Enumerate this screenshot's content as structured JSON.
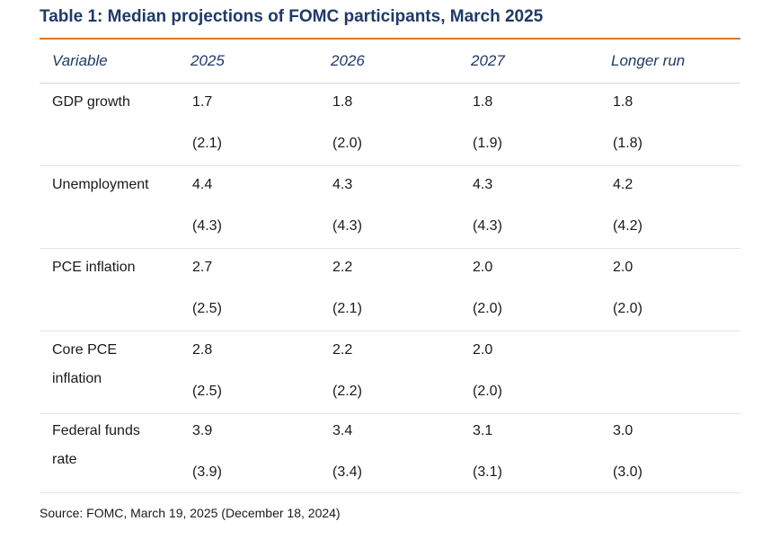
{
  "title": "Table 1: Median projections of FOMC participants, March 2025",
  "columns": [
    "Variable",
    "2025",
    "2026",
    "2027",
    "Longer run"
  ],
  "rows": [
    {
      "label": "GDP growth",
      "current": [
        "1.7",
        "1.8",
        "1.8",
        "1.8"
      ],
      "previous": [
        "(2.1)",
        "(2.0)",
        "(1.9)",
        "(1.8)"
      ]
    },
    {
      "label": "Unemployment",
      "current": [
        "4.4",
        "4.3",
        "4.3",
        "4.2"
      ],
      "previous": [
        "(4.3)",
        "(4.3)",
        "(4.3)",
        "(4.2)"
      ]
    },
    {
      "label": "PCE inflation",
      "current": [
        "2.7",
        "2.2",
        "2.0",
        "2.0"
      ],
      "previous": [
        "(2.5)",
        "(2.1)",
        "(2.0)",
        "(2.0)"
      ]
    },
    {
      "label": "Core PCE inflation",
      "current": [
        "2.8",
        "2.2",
        "2.0",
        ""
      ],
      "previous": [
        "(2.5)",
        "(2.2)",
        "(2.0)",
        ""
      ]
    },
    {
      "label": "Federal funds rate",
      "current": [
        "3.9",
        "3.4",
        "3.1",
        "3.0"
      ],
      "previous": [
        "(3.9)",
        "(3.4)",
        "(3.1)",
        "(3.0)"
      ]
    }
  ],
  "source": "Source: FOMC, March 19, 2025 (December 18, 2024)",
  "colors": {
    "title": "#1f3a68",
    "accent_rule": "#d9772b",
    "text": "#1a1a1a",
    "divider": "#e3e3e3"
  }
}
